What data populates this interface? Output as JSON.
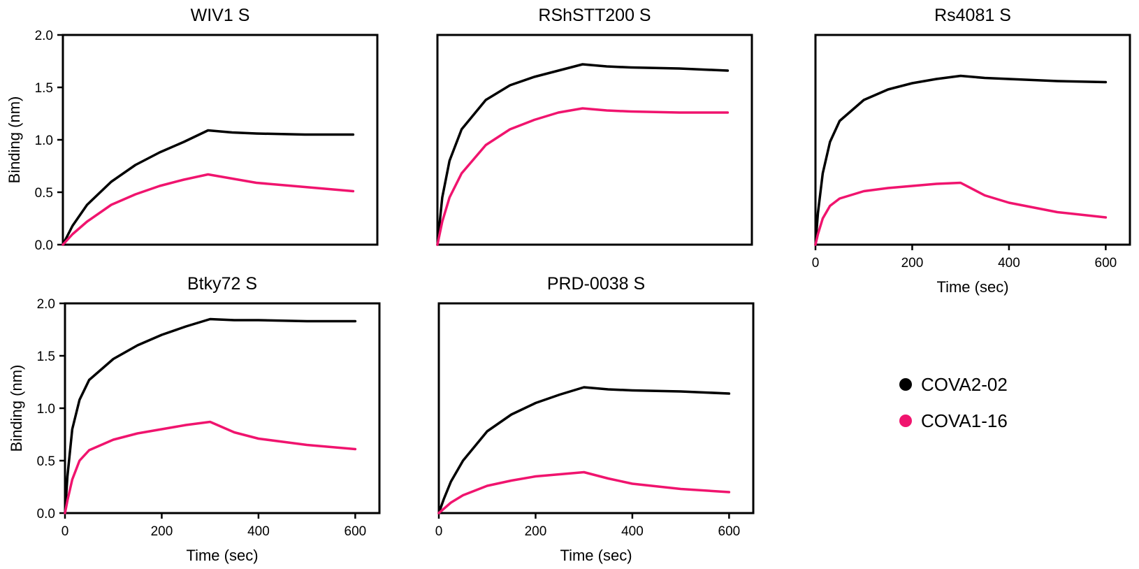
{
  "colors": {
    "COVA2-02": "#000000",
    "COVA1-16": "#f0146e"
  },
  "legend": {
    "items": [
      {
        "label": "COVA2-02",
        "color": "#000000"
      },
      {
        "label": "COVA1-16",
        "color": "#f0146e"
      }
    ]
  },
  "chart_data": [
    {
      "type": "line",
      "title": "WIV1 S",
      "xlabel": "",
      "ylabel": "Binding (nm)",
      "xlim": [
        0,
        650
      ],
      "ylim": [
        0,
        2.0
      ],
      "yticks": [
        "0.0",
        "0.5",
        "1.0",
        "1.5",
        "2.0"
      ],
      "xticks": [],
      "series": [
        {
          "name": "COVA2-02",
          "x": [
            0,
            20,
            50,
            100,
            150,
            200,
            250,
            300,
            350,
            400,
            500,
            600
          ],
          "y": [
            0,
            0.18,
            0.38,
            0.6,
            0.76,
            0.88,
            0.98,
            1.09,
            1.07,
            1.06,
            1.05,
            1.05
          ]
        },
        {
          "name": "COVA1-16",
          "x": [
            0,
            20,
            50,
            100,
            150,
            200,
            250,
            300,
            350,
            400,
            500,
            600
          ],
          "y": [
            0,
            0.1,
            0.22,
            0.38,
            0.48,
            0.56,
            0.62,
            0.67,
            0.63,
            0.59,
            0.55,
            0.51
          ]
        }
      ]
    },
    {
      "type": "line",
      "title": "RShSTT200 S",
      "xlabel": "",
      "ylabel": "",
      "xlim": [
        0,
        650
      ],
      "ylim": [
        0,
        2.0
      ],
      "yticks": [],
      "xticks": [],
      "series": [
        {
          "name": "COVA2-02",
          "x": [
            0,
            10,
            25,
            50,
            100,
            150,
            200,
            250,
            300,
            350,
            400,
            500,
            600
          ],
          "y": [
            0,
            0.45,
            0.8,
            1.1,
            1.38,
            1.52,
            1.6,
            1.66,
            1.72,
            1.7,
            1.69,
            1.68,
            1.66
          ]
        },
        {
          "name": "COVA1-16",
          "x": [
            0,
            10,
            25,
            50,
            100,
            150,
            200,
            250,
            300,
            350,
            400,
            500,
            600
          ],
          "y": [
            0,
            0.22,
            0.45,
            0.68,
            0.95,
            1.1,
            1.19,
            1.26,
            1.3,
            1.28,
            1.27,
            1.26,
            1.26
          ]
        }
      ]
    },
    {
      "type": "line",
      "title": "Rs4081 S",
      "xlabel": "Time (sec)",
      "ylabel": "",
      "xlim": [
        0,
        650
      ],
      "ylim": [
        0,
        2.0
      ],
      "yticks": [],
      "xticks": [
        "0",
        "200",
        "400",
        "600"
      ],
      "series": [
        {
          "name": "COVA2-02",
          "x": [
            0,
            5,
            15,
            30,
            50,
            100,
            150,
            200,
            250,
            300,
            350,
            400,
            500,
            600
          ],
          "y": [
            0,
            0.3,
            0.68,
            0.98,
            1.18,
            1.38,
            1.48,
            1.54,
            1.58,
            1.61,
            1.59,
            1.58,
            1.56,
            1.55
          ]
        },
        {
          "name": "COVA1-16",
          "x": [
            0,
            5,
            15,
            30,
            50,
            100,
            150,
            200,
            250,
            300,
            350,
            400,
            500,
            600
          ],
          "y": [
            0,
            0.1,
            0.25,
            0.37,
            0.44,
            0.51,
            0.54,
            0.56,
            0.58,
            0.59,
            0.47,
            0.4,
            0.31,
            0.26
          ]
        }
      ]
    },
    {
      "type": "line",
      "title": "Btky72 S",
      "xlabel": "Time (sec)",
      "ylabel": "Binding (nm)",
      "xlim": [
        0,
        650
      ],
      "ylim": [
        0,
        2.0
      ],
      "yticks": [
        "0.0",
        "0.5",
        "1.0",
        "1.5",
        "2.0"
      ],
      "xticks": [
        "0",
        "200",
        "400",
        "600"
      ],
      "series": [
        {
          "name": "COVA2-02",
          "x": [
            0,
            5,
            15,
            30,
            50,
            100,
            150,
            200,
            250,
            300,
            350,
            400,
            500,
            600
          ],
          "y": [
            0,
            0.35,
            0.8,
            1.08,
            1.27,
            1.47,
            1.6,
            1.7,
            1.78,
            1.85,
            1.84,
            1.84,
            1.83,
            1.83
          ]
        },
        {
          "name": "COVA1-16",
          "x": [
            0,
            5,
            15,
            30,
            50,
            100,
            150,
            200,
            250,
            300,
            350,
            400,
            500,
            600
          ],
          "y": [
            0,
            0.12,
            0.32,
            0.5,
            0.6,
            0.7,
            0.76,
            0.8,
            0.84,
            0.87,
            0.77,
            0.71,
            0.65,
            0.61
          ]
        }
      ]
    },
    {
      "type": "line",
      "title": "PRD-0038 S",
      "xlabel": "Time (sec)",
      "ylabel": "",
      "xlim": [
        0,
        650
      ],
      "ylim": [
        0,
        2.0
      ],
      "yticks": [],
      "xticks": [
        "0",
        "200",
        "400",
        "600"
      ],
      "series": [
        {
          "name": "COVA2-02",
          "x": [
            0,
            10,
            25,
            50,
            100,
            150,
            200,
            250,
            300,
            350,
            400,
            500,
            600
          ],
          "y": [
            0,
            0.13,
            0.3,
            0.5,
            0.78,
            0.94,
            1.05,
            1.13,
            1.2,
            1.18,
            1.17,
            1.16,
            1.14
          ]
        },
        {
          "name": "COVA1-16",
          "x": [
            0,
            10,
            25,
            50,
            100,
            150,
            200,
            250,
            300,
            350,
            400,
            500,
            600
          ],
          "y": [
            0,
            0.04,
            0.1,
            0.17,
            0.26,
            0.31,
            0.35,
            0.37,
            0.39,
            0.33,
            0.28,
            0.23,
            0.2
          ]
        }
      ]
    }
  ]
}
